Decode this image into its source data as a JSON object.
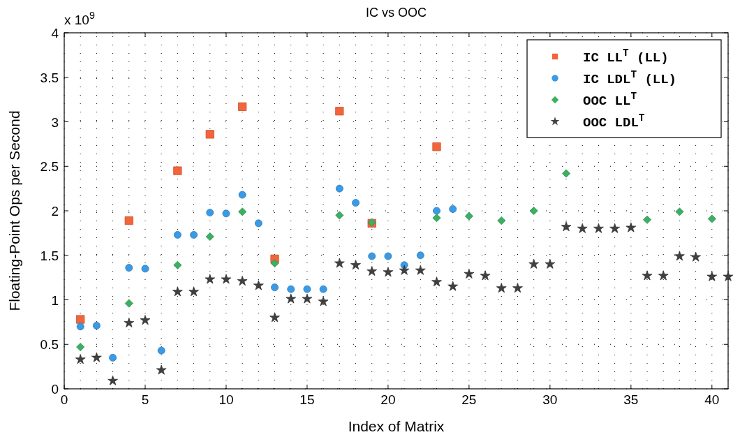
{
  "chart_data": {
    "type": "scatter",
    "title": "IC vs OOC",
    "xlabel": "Index of Matrix",
    "ylabel": "Floating-Point Ops per Second",
    "annotations": [
      "x 10$^{9}$"
    ],
    "xlim": [
      0,
      41
    ],
    "xticks": [
      0,
      5,
      10,
      15,
      20,
      25,
      30,
      35,
      40
    ],
    "ylim": [
      0,
      4
    ],
    "yticks": [
      0,
      0.5,
      1,
      1.5,
      2,
      2.5,
      3,
      3.5,
      4
    ],
    "grid": true,
    "legend": "top right",
    "series": [
      {
        "name": "IC LL$^{T}$ (LL)",
        "color": "#f4643a",
        "marker": "square",
        "x": [
          1,
          4,
          7,
          9,
          11,
          13,
          17,
          19,
          23
        ],
        "values": [
          0.78,
          1.89,
          2.45,
          2.86,
          3.17,
          1.46,
          3.12,
          1.86,
          2.72
        ]
      },
      {
        "name": "IC LDL$^{T}$ (LL)",
        "color": "#3b9ae6",
        "marker": "circle",
        "x": [
          1,
          2,
          3,
          4,
          5,
          6,
          7,
          8,
          9,
          10,
          11,
          12,
          13,
          14,
          15,
          16,
          17,
          18,
          19,
          20,
          21,
          22,
          23,
          24
        ],
        "values": [
          0.7,
          0.71,
          0.35,
          1.36,
          1.35,
          0.43,
          1.73,
          1.73,
          1.98,
          1.97,
          2.18,
          1.86,
          1.14,
          1.12,
          1.12,
          1.12,
          2.25,
          2.09,
          1.49,
          1.49,
          1.39,
          1.5,
          2.0,
          2.02
        ]
      },
      {
        "name": "OOC LL$^{T}$",
        "color": "#3cb062",
        "marker": "diamond",
        "x": [
          1,
          4,
          7,
          9,
          11,
          13,
          17,
          19,
          23,
          25,
          27,
          29,
          31,
          36,
          38,
          40
        ],
        "values": [
          0.47,
          0.96,
          1.39,
          1.71,
          1.99,
          1.41,
          1.95,
          1.87,
          1.92,
          1.94,
          1.89,
          2.0,
          2.42,
          1.9,
          1.99,
          1.91
        ]
      },
      {
        "name": "OOC LDL$^{T}$",
        "color": "#404040",
        "marker": "star",
        "x": [
          1,
          2,
          3,
          4,
          5,
          6,
          7,
          8,
          9,
          10,
          11,
          12,
          13,
          14,
          15,
          16,
          17,
          18,
          19,
          20,
          21,
          22,
          23,
          24,
          25,
          26,
          27,
          28,
          29,
          30,
          31,
          32,
          33,
          34,
          35,
          36,
          37,
          38,
          39,
          40,
          41
        ],
        "values": [
          0.33,
          0.35,
          0.09,
          0.74,
          0.77,
          0.21,
          1.09,
          1.09,
          1.23,
          1.23,
          1.21,
          1.16,
          0.8,
          1.01,
          1.01,
          0.98,
          1.41,
          1.39,
          1.32,
          1.31,
          1.33,
          1.33,
          1.2,
          1.15,
          1.29,
          1.27,
          1.13,
          1.13,
          1.4,
          1.4,
          1.82,
          1.8,
          1.8,
          1.8,
          1.81,
          1.27,
          1.27,
          1.49,
          1.48,
          1.26,
          1.26
        ]
      }
    ]
  }
}
